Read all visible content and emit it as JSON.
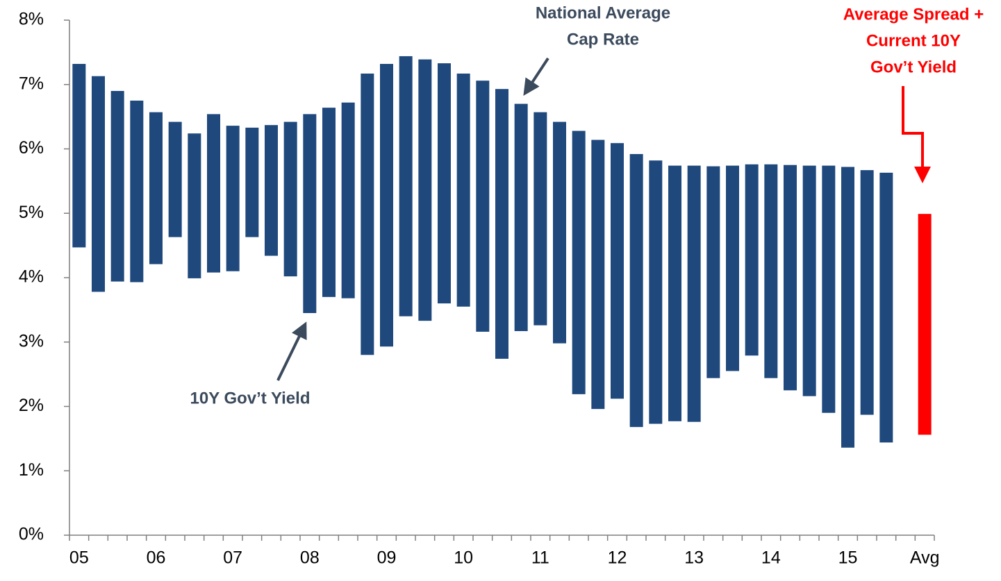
{
  "chart_data": {
    "type": "floating_bar",
    "categories": [
      "05",
      null,
      null,
      null,
      "06",
      null,
      null,
      null,
      "07",
      null,
      null,
      null,
      "08",
      null,
      null,
      null,
      "09",
      null,
      null,
      null,
      "10",
      null,
      null,
      null,
      "11",
      null,
      null,
      null,
      "12",
      null,
      null,
      null,
      "13",
      null,
      null,
      null,
      "14",
      null,
      null,
      null,
      "15",
      null,
      null,
      null,
      "Avg"
    ],
    "low": [
      4.47,
      3.78,
      3.94,
      3.93,
      4.21,
      4.63,
      3.99,
      4.08,
      4.1,
      4.63,
      4.34,
      4.02,
      3.45,
      3.7,
      3.68,
      2.8,
      2.93,
      3.4,
      3.33,
      3.6,
      3.55,
      3.16,
      2.74,
      3.17,
      3.26,
      2.98,
      2.19,
      1.96,
      2.12,
      1.68,
      1.73,
      1.77,
      1.76,
      2.44,
      2.55,
      2.79,
      2.44,
      2.25,
      2.16,
      1.9,
      1.36,
      1.87,
      1.44,
      null,
      1.56
    ],
    "high": [
      7.32,
      7.13,
      6.9,
      6.75,
      6.57,
      6.42,
      6.24,
      6.54,
      6.36,
      6.33,
      6.37,
      6.42,
      6.54,
      6.64,
      6.72,
      7.17,
      7.32,
      7.44,
      7.39,
      7.33,
      7.17,
      7.06,
      6.93,
      6.7,
      6.57,
      6.42,
      6.28,
      6.14,
      6.09,
      5.92,
      5.82,
      5.74,
      5.74,
      5.73,
      5.74,
      5.76,
      5.76,
      5.75,
      5.74,
      5.74,
      5.72,
      5.67,
      5.63,
      null,
      4.99
    ],
    "color": "#1f497d",
    "highlight_color": "#ff0000",
    "highlight_category": "Avg",
    "ylim": [
      0,
      8
    ],
    "yticks": [
      {
        "value": 0,
        "label": "0%"
      },
      {
        "value": 1,
        "label": "1%"
      },
      {
        "value": 2,
        "label": "2%"
      },
      {
        "value": 3,
        "label": "3%"
      },
      {
        "value": 4,
        "label": "4%"
      },
      {
        "value": 5,
        "label": "5%"
      },
      {
        "value": 6,
        "label": "6%"
      },
      {
        "value": 7,
        "label": "7%"
      },
      {
        "value": 8,
        "label": "8%"
      }
    ],
    "annotations": [
      {
        "lines": [
          "National Average",
          "Cap Rate"
        ],
        "color": "#3b4a5c"
      },
      {
        "lines": [
          "10Y Gov’t Yield"
        ],
        "color": "#3b4a5c"
      },
      {
        "lines": [
          "Average Spread +",
          "Current 10Y",
          "Gov’t Yield"
        ],
        "color": "#ff0000"
      }
    ]
  }
}
